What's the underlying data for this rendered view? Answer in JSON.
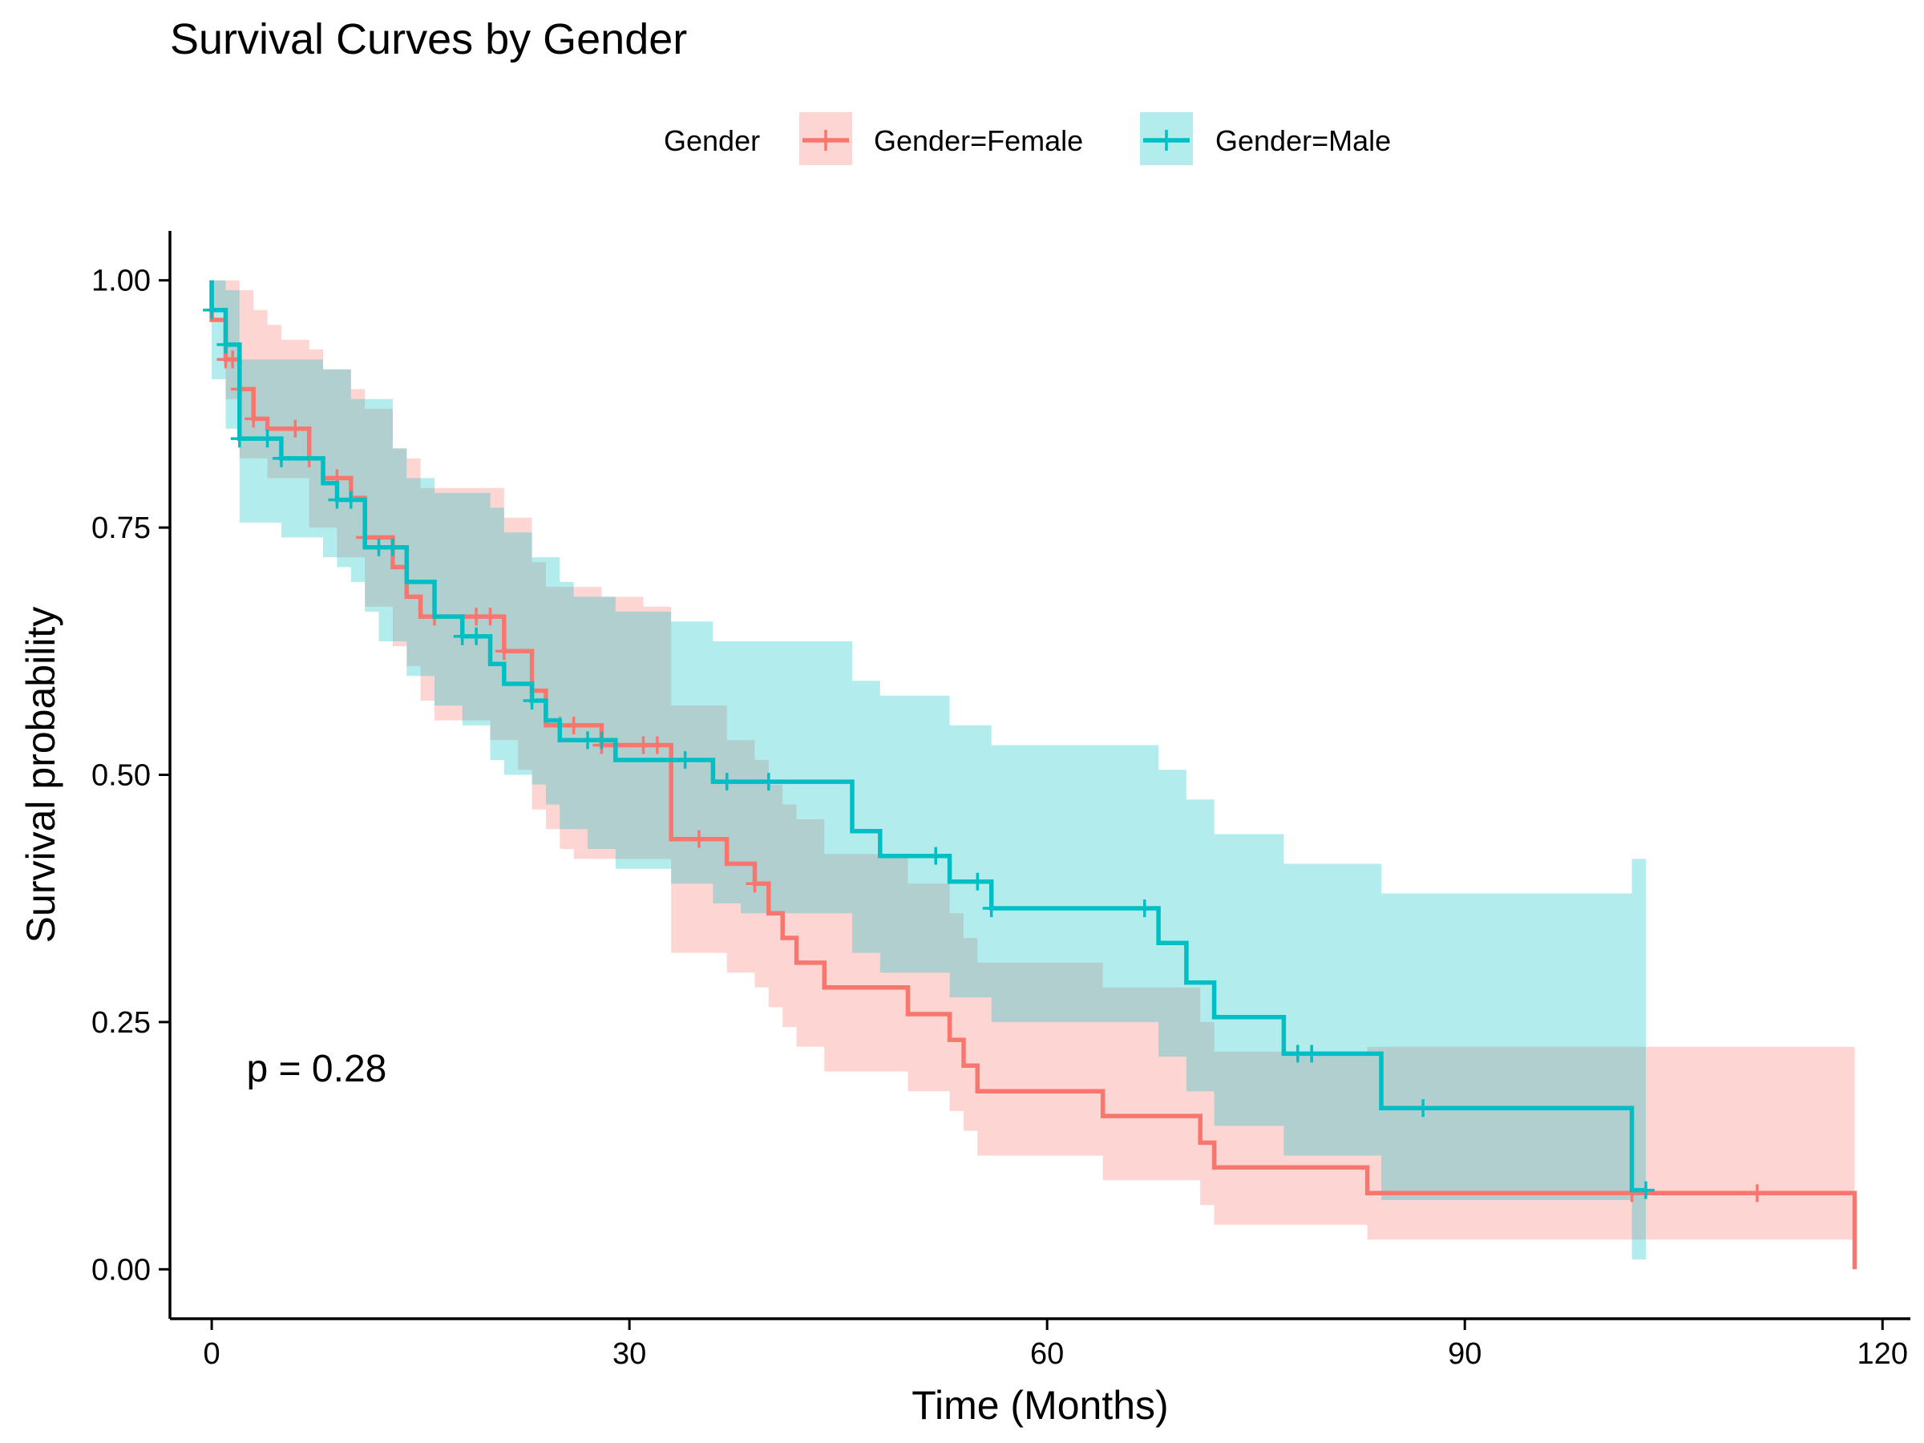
{
  "chart_data": {
    "type": "line",
    "subtype": "kaplan-meier step curves with confidence bands",
    "title": "Survival Curves by Gender",
    "xlabel": "Time (Months)",
    "ylabel": "Survival probability",
    "xlim": [
      -3,
      122
    ],
    "ylim": [
      -0.05,
      1.05
    ],
    "x_ticks": [
      0,
      30,
      60,
      90,
      120
    ],
    "x_tick_labels": [
      "0",
      "30",
      "60",
      "90",
      "120"
    ],
    "y_ticks": [
      0,
      0.25,
      0.5,
      0.75,
      1.0
    ],
    "y_tick_labels": [
      "0.00",
      "0.25",
      "0.50",
      "0.75",
      "1.00"
    ],
    "grid": false,
    "legend": {
      "title": "Gender",
      "placement": "top"
    },
    "annotation": {
      "text": "p = 0.28",
      "x": 2.5,
      "y": 0.19
    },
    "series": [
      {
        "name": "Gender=Female",
        "color": "#F8766D",
        "band_color": "#F8766D",
        "steps": [
          [
            0,
            1.0
          ],
          [
            0,
            0.96
          ],
          [
            1,
            0.92
          ],
          [
            1.5,
            0.92
          ],
          [
            2,
            0.89
          ],
          [
            3,
            0.86
          ],
          [
            4,
            0.85
          ],
          [
            7,
            0.82
          ],
          [
            8,
            0.8
          ],
          [
            10,
            0.78
          ],
          [
            11,
            0.74
          ],
          [
            13,
            0.71
          ],
          [
            14,
            0.68
          ],
          [
            15,
            0.66
          ],
          [
            21,
            0.625
          ],
          [
            23,
            0.585
          ],
          [
            24,
            0.55
          ],
          [
            28,
            0.53
          ],
          [
            33,
            0.435
          ],
          [
            37,
            0.41
          ],
          [
            39,
            0.39
          ],
          [
            40,
            0.36
          ],
          [
            41,
            0.335
          ],
          [
            42,
            0.31
          ],
          [
            44,
            0.285
          ],
          [
            50,
            0.258
          ],
          [
            53,
            0.232
          ],
          [
            54,
            0.206
          ],
          [
            55,
            0.18
          ],
          [
            64,
            0.155
          ],
          [
            71,
            0.128
          ],
          [
            72,
            0.103
          ],
          [
            83,
            0.077
          ],
          [
            118,
            0.077
          ],
          [
            118,
            0.0
          ]
        ],
        "lower": [
          [
            0,
            0.97
          ],
          [
            1,
            0.88
          ],
          [
            2,
            0.82
          ],
          [
            4,
            0.8
          ],
          [
            7,
            0.75
          ],
          [
            9,
            0.72
          ],
          [
            11,
            0.67
          ],
          [
            13,
            0.63
          ],
          [
            14,
            0.61
          ],
          [
            15,
            0.575
          ],
          [
            16,
            0.555
          ],
          [
            20,
            0.535
          ],
          [
            22,
            0.505
          ],
          [
            23,
            0.465
          ],
          [
            24,
            0.445
          ],
          [
            25,
            0.425
          ],
          [
            26,
            0.415
          ],
          [
            33,
            0.32
          ],
          [
            37,
            0.3
          ],
          [
            39,
            0.285
          ],
          [
            40,
            0.265
          ],
          [
            41,
            0.245
          ],
          [
            42,
            0.225
          ],
          [
            44,
            0.2
          ],
          [
            50,
            0.18
          ],
          [
            53,
            0.16
          ],
          [
            54,
            0.14
          ],
          [
            55,
            0.115
          ],
          [
            64,
            0.09
          ],
          [
            71,
            0.065
          ],
          [
            72,
            0.045
          ],
          [
            83,
            0.03
          ],
          [
            118,
            0.03
          ]
        ],
        "upper": [
          [
            0,
            1.0
          ],
          [
            2,
            0.99
          ],
          [
            3,
            0.97
          ],
          [
            4,
            0.955
          ],
          [
            5,
            0.94
          ],
          [
            7,
            0.93
          ],
          [
            8,
            0.91
          ],
          [
            10,
            0.89
          ],
          [
            11,
            0.87
          ],
          [
            13,
            0.83
          ],
          [
            14,
            0.82
          ],
          [
            15,
            0.79
          ],
          [
            21,
            0.76
          ],
          [
            23,
            0.715
          ],
          [
            24,
            0.69
          ],
          [
            28,
            0.68
          ],
          [
            31,
            0.67
          ],
          [
            33,
            0.57
          ],
          [
            37,
            0.535
          ],
          [
            39,
            0.515
          ],
          [
            40,
            0.49
          ],
          [
            41,
            0.47
          ],
          [
            42,
            0.455
          ],
          [
            44,
            0.42
          ],
          [
            50,
            0.39
          ],
          [
            53,
            0.36
          ],
          [
            54,
            0.335
          ],
          [
            55,
            0.31
          ],
          [
            64,
            0.285
          ],
          [
            71,
            0.25
          ],
          [
            72,
            0.22
          ],
          [
            83,
            0.225
          ],
          [
            118,
            0.225
          ]
        ],
        "censored": [
          [
            1,
            0.92
          ],
          [
            1.5,
            0.92
          ],
          [
            2,
            0.89
          ],
          [
            3,
            0.86
          ],
          [
            6,
            0.85
          ],
          [
            7,
            0.82
          ],
          [
            9,
            0.8
          ],
          [
            11,
            0.74
          ],
          [
            16,
            0.66
          ],
          [
            19,
            0.66
          ],
          [
            20,
            0.66
          ],
          [
            21,
            0.625
          ],
          [
            25,
            0.55
          ],
          [
            26,
            0.55
          ],
          [
            28,
            0.53
          ],
          [
            31,
            0.53
          ],
          [
            32,
            0.53
          ],
          [
            35,
            0.435
          ],
          [
            39,
            0.39
          ],
          [
            102,
            0.077
          ],
          [
            111,
            0.077
          ]
        ]
      },
      {
        "name": "Gender=Male",
        "color": "#00BFC4",
        "band_color": "#00BFC4",
        "steps": [
          [
            0,
            1.0
          ],
          [
            0,
            0.97
          ],
          [
            1,
            0.935
          ],
          [
            2,
            0.84
          ],
          [
            5,
            0.82
          ],
          [
            8,
            0.795
          ],
          [
            9,
            0.778
          ],
          [
            11,
            0.73
          ],
          [
            14,
            0.695
          ],
          [
            16,
            0.66
          ],
          [
            18,
            0.64
          ],
          [
            20,
            0.612
          ],
          [
            21,
            0.592
          ],
          [
            23,
            0.575
          ],
          [
            24,
            0.555
          ],
          [
            25,
            0.535
          ],
          [
            29,
            0.515
          ],
          [
            36,
            0.493
          ],
          [
            46,
            0.443
          ],
          [
            48,
            0.418
          ],
          [
            53,
            0.392
          ],
          [
            56,
            0.365
          ],
          [
            68,
            0.33
          ],
          [
            70,
            0.29
          ],
          [
            72,
            0.255
          ],
          [
            77,
            0.218
          ],
          [
            84,
            0.163
          ],
          [
            102,
            0.163
          ],
          [
            102,
            0.08
          ],
          [
            103,
            0.08
          ]
        ],
        "lower": [
          [
            0,
            0.9
          ],
          [
            1,
            0.85
          ],
          [
            2,
            0.755
          ],
          [
            5,
            0.74
          ],
          [
            8,
            0.72
          ],
          [
            9,
            0.71
          ],
          [
            10,
            0.695
          ],
          [
            11,
            0.665
          ],
          [
            12,
            0.635
          ],
          [
            14,
            0.6
          ],
          [
            16,
            0.57
          ],
          [
            18,
            0.55
          ],
          [
            20,
            0.515
          ],
          [
            21,
            0.5
          ],
          [
            23,
            0.49
          ],
          [
            24,
            0.47
          ],
          [
            25,
            0.445
          ],
          [
            27,
            0.425
          ],
          [
            29,
            0.405
          ],
          [
            33,
            0.39
          ],
          [
            36,
            0.37
          ],
          [
            38,
            0.36
          ],
          [
            46,
            0.32
          ],
          [
            48,
            0.3
          ],
          [
            53,
            0.275
          ],
          [
            56,
            0.25
          ],
          [
            68,
            0.215
          ],
          [
            70,
            0.18
          ],
          [
            72,
            0.145
          ],
          [
            77,
            0.115
          ],
          [
            84,
            0.07
          ],
          [
            102,
            0.07
          ],
          [
            102,
            0.01
          ],
          [
            103,
            0.01
          ]
        ],
        "upper": [
          [
            0,
            1.0
          ],
          [
            1,
            0.99
          ],
          [
            2,
            0.92
          ],
          [
            8,
            0.91
          ],
          [
            10,
            0.88
          ],
          [
            13,
            0.83
          ],
          [
            14,
            0.8
          ],
          [
            16,
            0.785
          ],
          [
            20,
            0.77
          ],
          [
            21,
            0.745
          ],
          [
            23,
            0.72
          ],
          [
            25,
            0.695
          ],
          [
            26,
            0.68
          ],
          [
            29,
            0.665
          ],
          [
            33,
            0.655
          ],
          [
            36,
            0.635
          ],
          [
            46,
            0.595
          ],
          [
            48,
            0.58
          ],
          [
            53,
            0.55
          ],
          [
            56,
            0.53
          ],
          [
            68,
            0.505
          ],
          [
            70,
            0.475
          ],
          [
            72,
            0.44
          ],
          [
            77,
            0.41
          ],
          [
            84,
            0.38
          ],
          [
            102,
            0.38
          ],
          [
            102,
            0.415
          ],
          [
            103,
            0.415
          ]
        ],
        "censored": [
          [
            0,
            0.97
          ],
          [
            1,
            0.935
          ],
          [
            2,
            0.84
          ],
          [
            4,
            0.84
          ],
          [
            5,
            0.82
          ],
          [
            9,
            0.778
          ],
          [
            10,
            0.778
          ],
          [
            12,
            0.73
          ],
          [
            13,
            0.73
          ],
          [
            18,
            0.64
          ],
          [
            19,
            0.64
          ],
          [
            23,
            0.575
          ],
          [
            27,
            0.535
          ],
          [
            28,
            0.535
          ],
          [
            34,
            0.515
          ],
          [
            37,
            0.493
          ],
          [
            40,
            0.493
          ],
          [
            52,
            0.418
          ],
          [
            55,
            0.392
          ],
          [
            56,
            0.365
          ],
          [
            67,
            0.365
          ],
          [
            78,
            0.218
          ],
          [
            79,
            0.218
          ],
          [
            87,
            0.163
          ],
          [
            103,
            0.08
          ]
        ]
      }
    ]
  }
}
